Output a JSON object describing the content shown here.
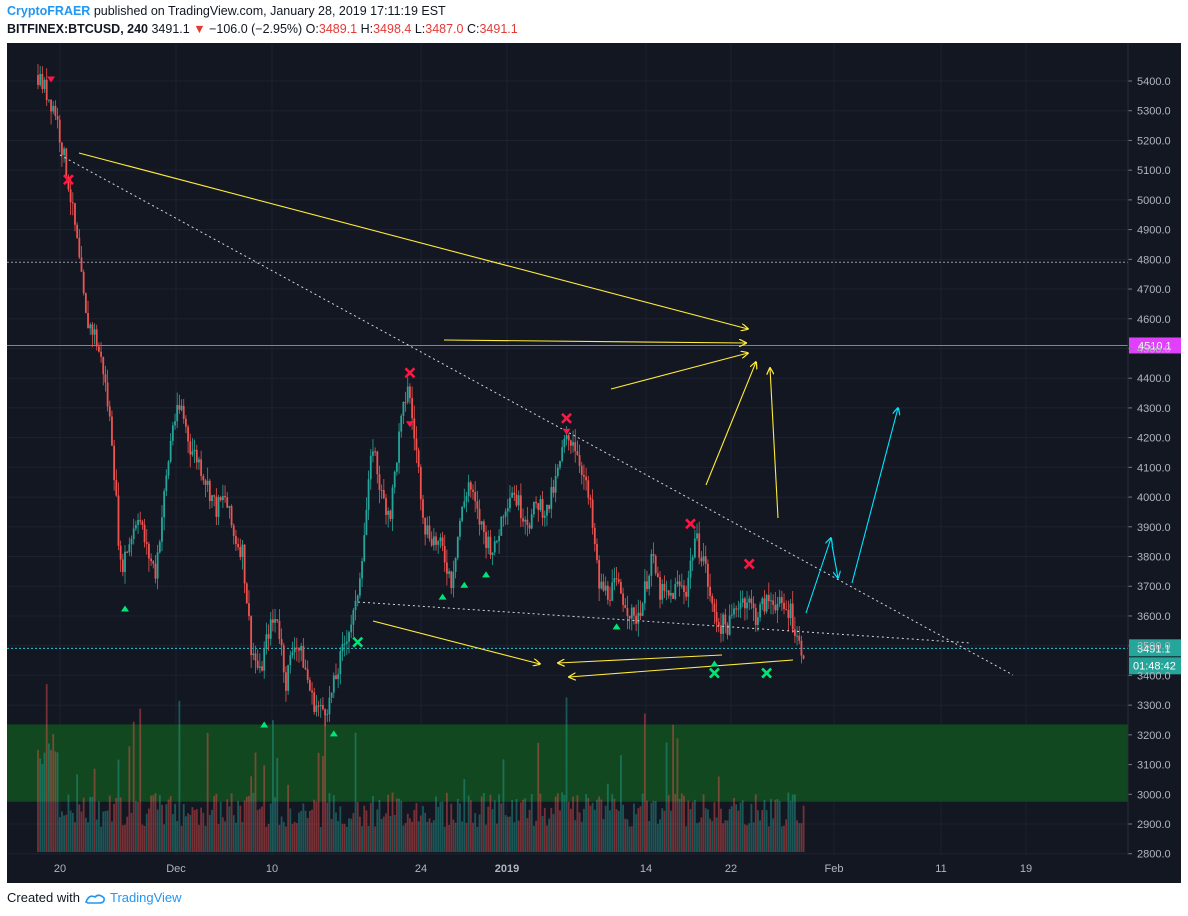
{
  "header": {
    "author": "CryptoFRAER",
    "published": "published on TradingView.com, January 28, 2019 17:11:19 EST",
    "symbol": "BITFINEX:BTCUSD, 240",
    "last": "3491.1",
    "change": "−106.0 (−2.95%)",
    "o_label": "O:",
    "o": "3489.1",
    "h_label": "H:",
    "h": "3498.4",
    "l_label": "L:",
    "l": "3487.0",
    "c_label": "C:",
    "c": "3491.1"
  },
  "footer": {
    "created_with": "Created with",
    "brand": "TradingView"
  },
  "colors": {
    "background": "#131722",
    "up": "#26a69a",
    "down": "#ef5350",
    "yellow": "#ffeb3b",
    "cyan": "#00e5ff",
    "magenta": "#e040fb",
    "green_zone": "#124d1f",
    "buy_marker": "#00e676",
    "sell_marker": "#ff1744"
  },
  "chart_data": {
    "type": "candlestick",
    "price_axis": [
      "5400.0",
      "5300.0",
      "5200.0",
      "5100.0",
      "5000.0",
      "4900.0",
      "4800.0",
      "4700.0",
      "4600.0",
      "4500.0",
      "4400.0",
      "4300.0",
      "4200.0",
      "4100.0",
      "4000.0",
      "3900.0",
      "3800.0",
      "3700.0",
      "3600.0",
      "3500.0",
      "3400.0",
      "3300.0",
      "3200.0",
      "3100.0",
      "3000.0",
      "2900.0",
      "2800.0"
    ],
    "time_axis": [
      "20",
      "Dec",
      "10",
      "24",
      "2019",
      "14",
      "22",
      "Feb",
      "11",
      "19"
    ],
    "ylim": [
      2700,
      5480
    ],
    "last_price_label": "3491.1",
    "countdown_label": "01:48:42",
    "resistance_label": "4510.1",
    "levels": [
      {
        "name": "resistance",
        "value": 4510.1,
        "style": "solid-magenta"
      },
      {
        "name": "dotted-level",
        "value": 4790,
        "style": "dotted"
      },
      {
        "name": "last-price",
        "value": 3491.1,
        "style": "dotted-cyan"
      }
    ],
    "support_zone": [
      2975,
      3235
    ],
    "price_path": [
      [
        0,
        5420
      ],
      [
        8,
        5300
      ],
      [
        14,
        5060
      ],
      [
        18,
        4850
      ],
      [
        22,
        4600
      ],
      [
        26,
        4550
      ],
      [
        30,
        4430
      ],
      [
        34,
        4200
      ],
      [
        38,
        3760
      ],
      [
        42,
        3850
      ],
      [
        46,
        3950
      ],
      [
        50,
        3820
      ],
      [
        54,
        3750
      ],
      [
        58,
        4000
      ],
      [
        62,
        4250
      ],
      [
        66,
        4300
      ],
      [
        70,
        4170
      ],
      [
        74,
        4120
      ],
      [
        78,
        4040
      ],
      [
        82,
        3960
      ],
      [
        86,
        4000
      ],
      [
        90,
        3870
      ],
      [
        94,
        3820
      ],
      [
        98,
        3500
      ],
      [
        102,
        3400
      ],
      [
        106,
        3550
      ],
      [
        110,
        3600
      ],
      [
        114,
        3380
      ],
      [
        118,
        3520
      ],
      [
        122,
        3450
      ],
      [
        126,
        3320
      ],
      [
        130,
        3280
      ],
      [
        134,
        3310
      ],
      [
        138,
        3420
      ],
      [
        142,
        3540
      ],
      [
        146,
        3620
      ],
      [
        150,
        3880
      ],
      [
        154,
        4180
      ],
      [
        158,
        4000
      ],
      [
        162,
        3950
      ],
      [
        166,
        4200
      ],
      [
        170,
        4380
      ],
      [
        174,
        4150
      ],
      [
        178,
        3900
      ],
      [
        182,
        3860
      ],
      [
        186,
        3820
      ],
      [
        190,
        3720
      ],
      [
        194,
        3920
      ],
      [
        198,
        4050
      ],
      [
        202,
        3940
      ],
      [
        206,
        3860
      ],
      [
        210,
        3820
      ],
      [
        214,
        3960
      ],
      [
        218,
        4030
      ],
      [
        222,
        3960
      ],
      [
        226,
        3920
      ],
      [
        230,
        3980
      ],
      [
        234,
        3950
      ],
      [
        238,
        4050
      ],
      [
        242,
        4180
      ],
      [
        246,
        4200
      ],
      [
        250,
        4100
      ],
      [
        254,
        3960
      ],
      [
        258,
        3700
      ],
      [
        262,
        3680
      ],
      [
        266,
        3700
      ],
      [
        270,
        3650
      ],
      [
        274,
        3580
      ],
      [
        278,
        3650
      ],
      [
        282,
        3800
      ],
      [
        286,
        3680
      ],
      [
        290,
        3660
      ],
      [
        294,
        3700
      ],
      [
        298,
        3690
      ],
      [
        302,
        3860
      ],
      [
        306,
        3800
      ],
      [
        310,
        3620
      ],
      [
        314,
        3570
      ],
      [
        318,
        3570
      ],
      [
        322,
        3650
      ],
      [
        326,
        3660
      ],
      [
        330,
        3600
      ],
      [
        334,
        3640
      ],
      [
        338,
        3660
      ],
      [
        342,
        3620
      ],
      [
        346,
        3620
      ],
      [
        350,
        3500
      ],
      [
        352,
        3491
      ]
    ],
    "markers": [
      {
        "type": "sell-x",
        "t": 14,
        "price": 5068
      },
      {
        "type": "sell-x",
        "t": 171,
        "price": 4418
      },
      {
        "type": "sell-x",
        "t": 243,
        "price": 4265
      },
      {
        "type": "sell-x",
        "t": 300,
        "price": 3910
      },
      {
        "type": "sell-x",
        "t": 327,
        "price": 3775
      },
      {
        "type": "buy-x",
        "t": 147,
        "price": 3512
      },
      {
        "type": "buy-x",
        "t": 311,
        "price": 3408
      },
      {
        "type": "buy-x",
        "t": 335,
        "price": 3408
      },
      {
        "type": "buy-arrow",
        "t": 40,
        "price": 3625
      },
      {
        "type": "buy-arrow",
        "t": 104,
        "price": 3235
      },
      {
        "type": "buy-arrow",
        "t": 136,
        "price": 3205
      },
      {
        "type": "buy-arrow",
        "t": 186,
        "price": 3665
      },
      {
        "type": "buy-arrow",
        "t": 196,
        "price": 3705
      },
      {
        "type": "buy-arrow",
        "t": 206,
        "price": 3740
      },
      {
        "type": "buy-arrow",
        "t": 266,
        "price": 3565
      },
      {
        "type": "buy-arrow",
        "t": 311,
        "price": 3440
      },
      {
        "type": "sell-arrow",
        "t": 171,
        "price": 4245
      },
      {
        "type": "sell-arrow",
        "t": 243,
        "price": 4220
      },
      {
        "type": "sell-arrow",
        "t": 6,
        "price": 5405
      }
    ]
  }
}
